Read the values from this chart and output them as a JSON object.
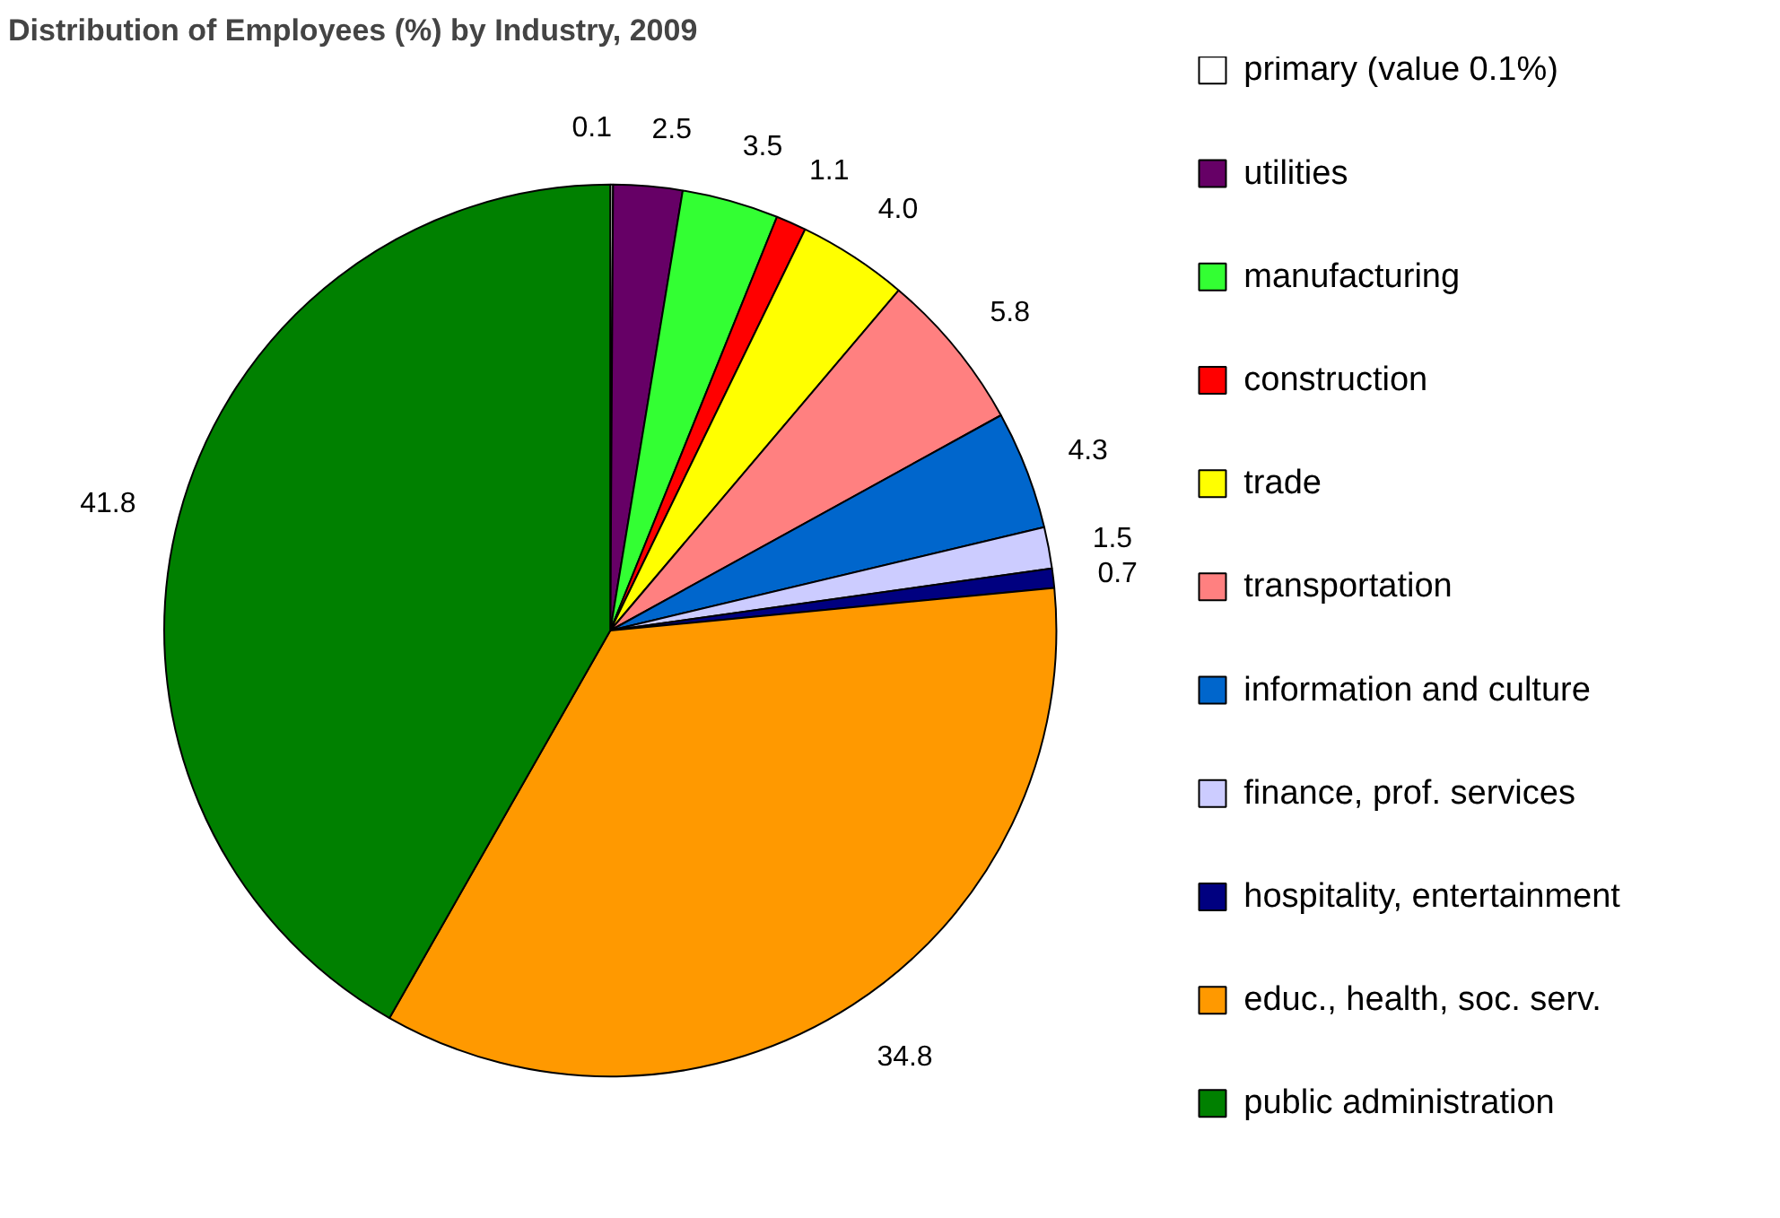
{
  "chart_data": {
    "type": "pie",
    "title": "Distribution of Employees (%) by Industry, 2009",
    "categories": [
      "primary (value 0.1%)",
      "utilities",
      "manufacturing",
      "construction",
      "trade",
      "transportation",
      "information and culture",
      "finance, prof. services",
      "hospitality, entertainment",
      "educ., health, soc. serv.",
      "public administration"
    ],
    "values": [
      0.1,
      2.5,
      3.5,
      1.1,
      4.0,
      5.8,
      4.3,
      1.5,
      0.7,
      34.8,
      41.8
    ],
    "colors": [
      "#ffffff",
      "#660066",
      "#33ff33",
      "#ff0000",
      "#ffff00",
      "#ff8080",
      "#0066cc",
      "#ccccff",
      "#000080",
      "#ff9900",
      "#008000"
    ],
    "value_labels": [
      "0.1",
      "2.5",
      "3.5",
      "1.1",
      "4.0",
      "5.8",
      "4.3",
      "1.5",
      "0.7",
      "34.8",
      "41.8"
    ],
    "legend": "right"
  }
}
